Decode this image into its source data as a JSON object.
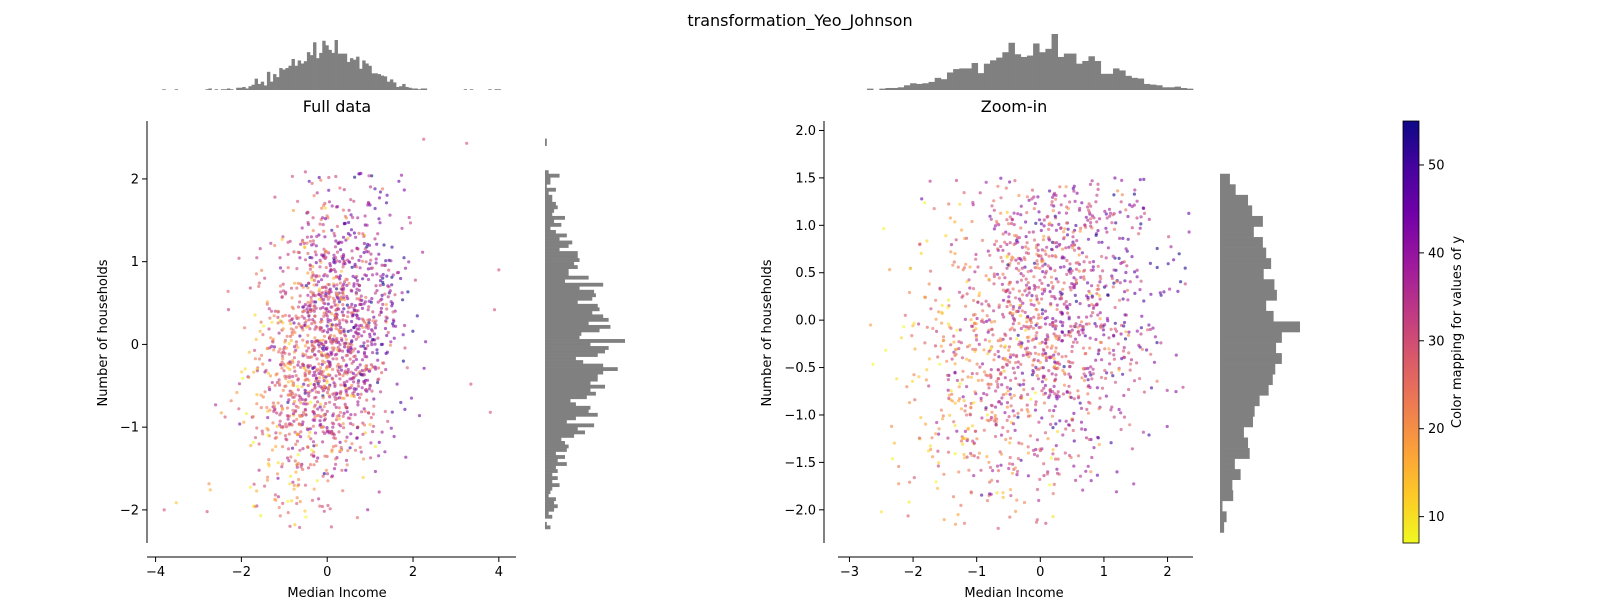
{
  "figure": {
    "title": "transformation_Yeo_Johnson"
  },
  "colors": {
    "histogram": "#808080",
    "axis": "#000000",
    "colormap": "plasma_r",
    "colormap_stops": [
      "#f0f921",
      "#fdca26",
      "#fb9f3a",
      "#ed7953",
      "#d8576b",
      "#bd3786",
      "#9c179e",
      "#7201a8",
      "#46039f",
      "#0d0887"
    ]
  },
  "chart_data": [
    {
      "type": "scatter",
      "title": "Full data",
      "xlabel": "Median Income",
      "ylabel": "Number of households",
      "xlim": [
        -4.2,
        4.4
      ],
      "ylim": [
        -2.4,
        2.7
      ],
      "xticks": [
        "−4",
        "−2",
        "0",
        "2",
        "4"
      ],
      "xtick_values": [
        -4,
        -2,
        0,
        2,
        4
      ],
      "yticks": [
        "−2",
        "−1",
        "0",
        "1",
        "2"
      ],
      "ytick_values": [
        -2,
        -1,
        0,
        1,
        2
      ],
      "points": {
        "n": 1600,
        "x_mean": 0,
        "x_sd": 0.85,
        "y_mean": 0,
        "y_sd": 0.92,
        "correlation": 0.3,
        "value_min": 7,
        "value_max": 55,
        "alpha": 0.6
      },
      "outliers": [
        [
          2.25,
          2.48
        ],
        [
          3.25,
          2.43
        ],
        [
          3.9,
          0.42
        ],
        [
          4.0,
          0.9
        ],
        [
          3.35,
          -0.48
        ],
        [
          3.8,
          -0.82
        ],
        [
          -3.8,
          -2.0
        ],
        [
          -2.8,
          -2.02
        ]
      ],
      "top_histogram": {
        "bins": 120
      },
      "right_histogram": {
        "bins": 120
      },
      "grid": false
    },
    {
      "type": "scatter",
      "title": "Zoom-in",
      "xlabel": "Median Income",
      "ylabel": "Number of households",
      "xlim": [
        -3.4,
        2.4
      ],
      "ylim": [
        -2.35,
        2.1
      ],
      "xticks": [
        "−3",
        "−2",
        "−1",
        "0",
        "1",
        "2"
      ],
      "xtick_values": [
        -3,
        -2,
        -1,
        0,
        1,
        2
      ],
      "yticks": [
        "−2.0",
        "−1.5",
        "−1.0",
        "−0.5",
        "0.0",
        "0.5",
        "1.0",
        "1.5",
        "2.0"
      ],
      "ytick_values": [
        -2,
        -1.5,
        -1,
        -0.5,
        0,
        0.5,
        1,
        1.5,
        2
      ],
      "points": {
        "n": 1500,
        "x_mean": 0,
        "x_sd": 0.95,
        "y_mean": 0,
        "y_sd": 0.95,
        "correlation": 0.3,
        "value_min": 7,
        "value_max": 55,
        "alpha": 0.6
      },
      "top_histogram": {
        "bins": 60
      },
      "right_histogram": {
        "bins": 40
      },
      "grid": false
    }
  ],
  "colorbar": {
    "label": "Color mapping for values of y",
    "range": [
      7,
      55
    ],
    "ticks": [
      "10",
      "20",
      "30",
      "40",
      "50"
    ],
    "tick_values": [
      10,
      20,
      30,
      40,
      50
    ]
  }
}
